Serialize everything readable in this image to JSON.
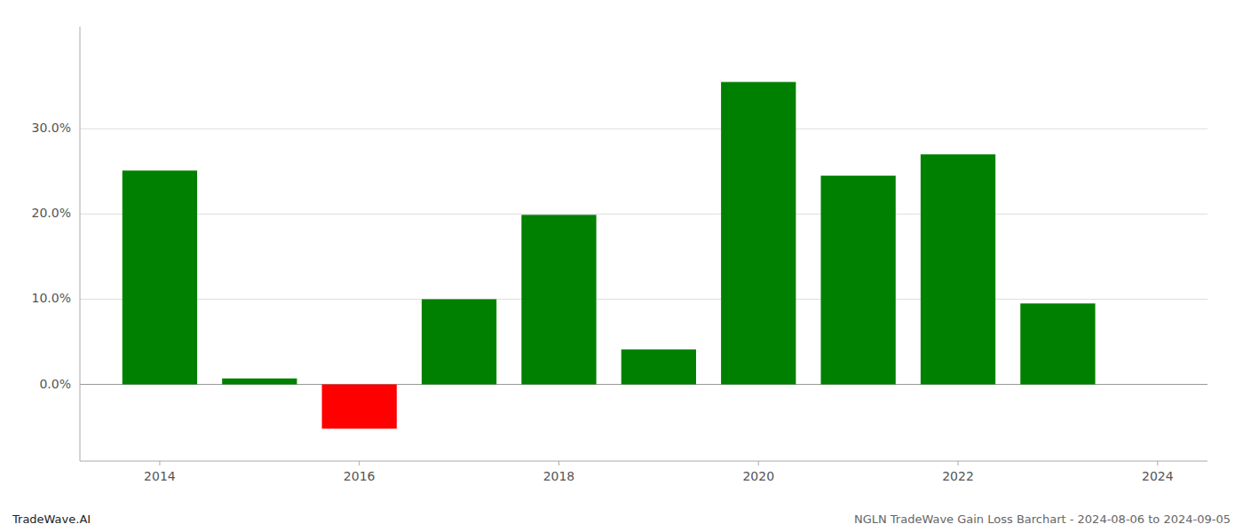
{
  "chart_data": {
    "type": "bar",
    "x": [
      2014,
      2015,
      2016,
      2017,
      2018,
      2019,
      2020,
      2021,
      2022,
      2023
    ],
    "values": [
      0.251,
      0.007,
      -0.052,
      0.1,
      0.199,
      0.041,
      0.355,
      0.245,
      0.27,
      0.095
    ],
    "colors": [
      "#008000",
      "#008000",
      "#ff0000",
      "#008000",
      "#008000",
      "#008000",
      "#008000",
      "#008000",
      "#008000",
      "#008000"
    ],
    "xlim": [
      2013.2,
      2024.5
    ],
    "xticks": [
      2014,
      2016,
      2018,
      2020,
      2022,
      2024
    ],
    "ylim": [
      -0.09,
      0.42
    ],
    "yticks": [
      {
        "value": 0.0,
        "label": "0.0%"
      },
      {
        "value": 0.1,
        "label": "10.0%"
      },
      {
        "value": 0.2,
        "label": "20.0%"
      },
      {
        "value": 0.3,
        "label": "30.0%"
      }
    ],
    "grid": true,
    "annotations": [
      "TradeWave.AI",
      "NGLN TradeWave Gain Loss Barchart - 2024-08-06 to 2024-09-05"
    ]
  }
}
